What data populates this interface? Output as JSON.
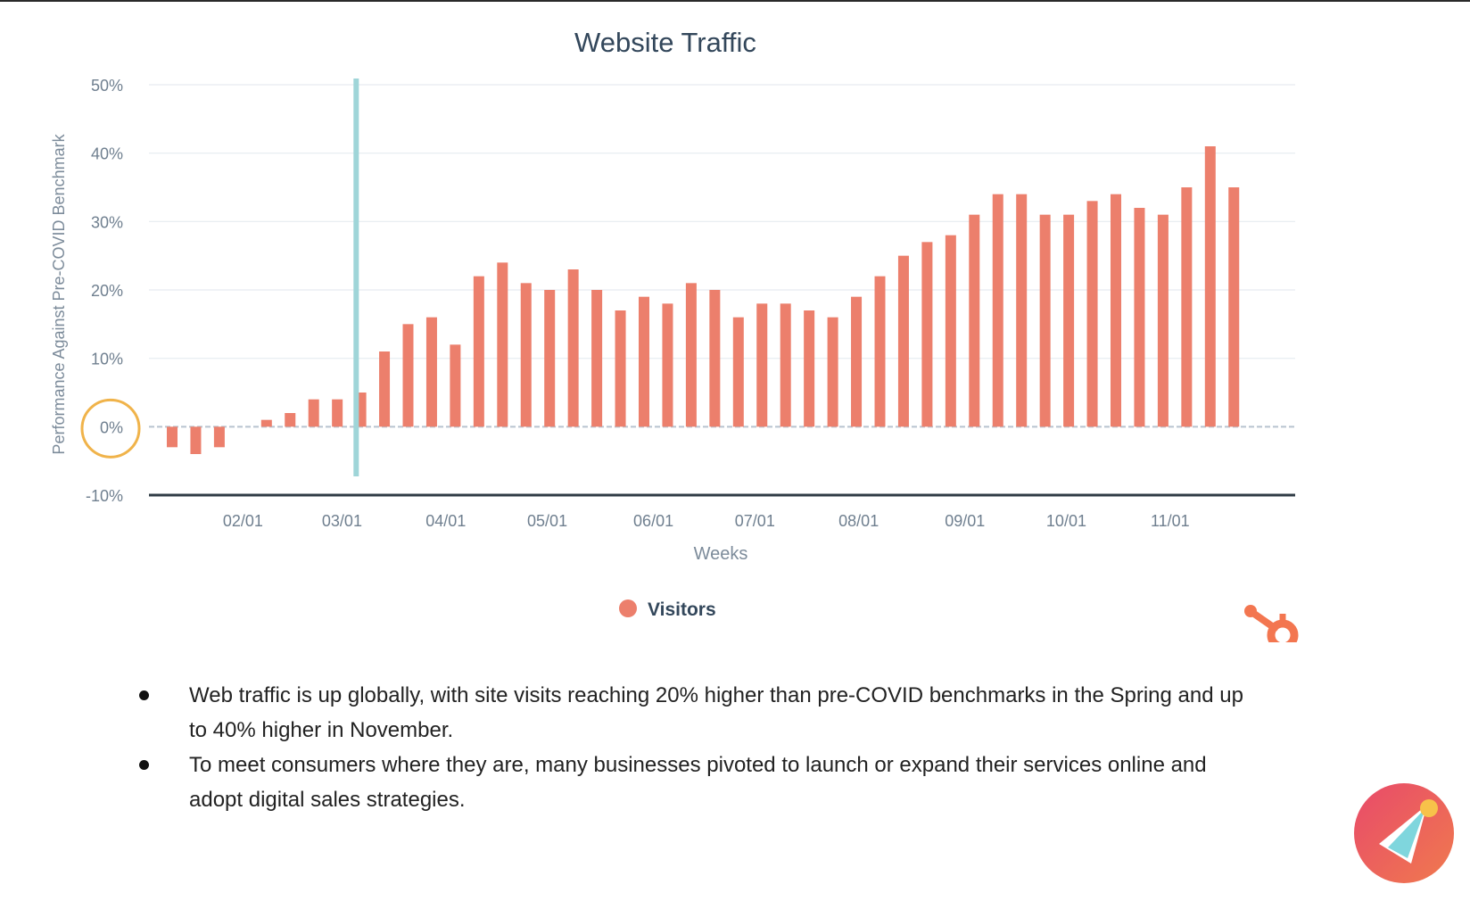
{
  "chart_data": {
    "type": "bar",
    "title": "Website Traffic",
    "xlabel": "Weeks",
    "ylabel": "Performance Against Pre-COVID Benchmark",
    "ylim": [
      -10,
      50
    ],
    "y_ticks": [
      50,
      40,
      30,
      20,
      10,
      0,
      -10
    ],
    "y_tick_labels": [
      "50%",
      "40%",
      "30%",
      "20%",
      "10%",
      "0%",
      "-10%"
    ],
    "x_tick_labels": [
      "02/01",
      "03/01",
      "04/01",
      "05/01",
      "06/01",
      "07/01",
      "08/01",
      "09/01",
      "10/01",
      "11/01"
    ],
    "x_tick_week_index": [
      3.0,
      7.2,
      11.6,
      15.9,
      20.4,
      24.7,
      29.1,
      33.6,
      37.9,
      42.3
    ],
    "series": [
      {
        "name": "Visitors",
        "color": "#ec7f6c",
        "values": [
          -3,
          -4,
          -3,
          0,
          1,
          2,
          4,
          4,
          5,
          11,
          15,
          16,
          12,
          22,
          24,
          21,
          20,
          23,
          20,
          17,
          19,
          18,
          21,
          20,
          16,
          18,
          18,
          17,
          16,
          19,
          22,
          25,
          27,
          28,
          31,
          34,
          34,
          31,
          31,
          33,
          34,
          32,
          31,
          35,
          41,
          35
        ]
      }
    ],
    "annotations": {
      "vertical_marker_week_index": 7.8,
      "vertical_marker_color": "#9fd5d8",
      "zero_circle_color": "#f0b34a"
    },
    "legend": "bottom-center",
    "grid": true
  },
  "bullets": [
    "Web traffic is up globally, with site visits reaching 20% higher than pre-COVID benchmarks in the Spring and up to 40% higher in November.",
    "To meet consumers where they are, many businesses pivoted to launch or expand their services online and adopt digital sales strategies."
  ],
  "logos": {
    "hubspot": {
      "icon": "hubspot-sprocket-icon",
      "color": "#f37650"
    },
    "corner": {
      "icon": "rocket-circle-logo",
      "color": "#e2515e"
    }
  }
}
